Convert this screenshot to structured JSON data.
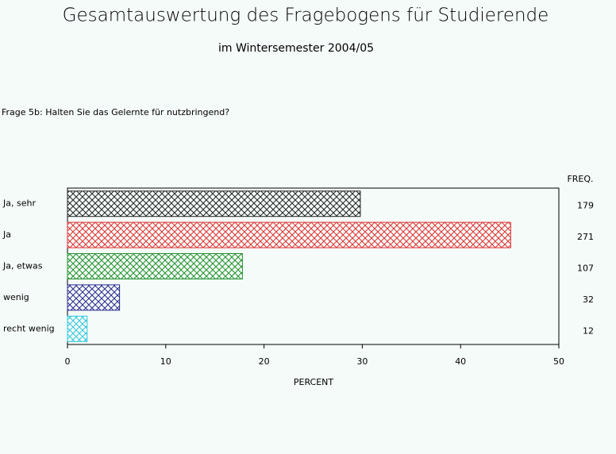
{
  "chart_data": {
    "type": "hbar",
    "title": "Gesamtauswertung des Fragebogens für Studierende",
    "subtitle": "im Wintersemester 2004/05",
    "question": "Frage 5b: Halten Sie das Gelernte für nutzbringend?",
    "categories": [
      "Ja, sehr",
      "Ja",
      "Ja, etwas",
      "wenig",
      "recht wenig"
    ],
    "values": [
      29.8,
      45.1,
      17.8,
      5.3,
      2.0
    ],
    "colors": [
      "#222222",
      "#e03030",
      "#20902a",
      "#2a2a90",
      "#30c8e0"
    ],
    "freq_label": "FREQ.",
    "freq": [
      179,
      271,
      107,
      32,
      12
    ],
    "xlabel": "PERCENT",
    "xlim": [
      0,
      50
    ],
    "xticks": [
      0,
      10,
      20,
      30,
      40,
      50
    ]
  }
}
